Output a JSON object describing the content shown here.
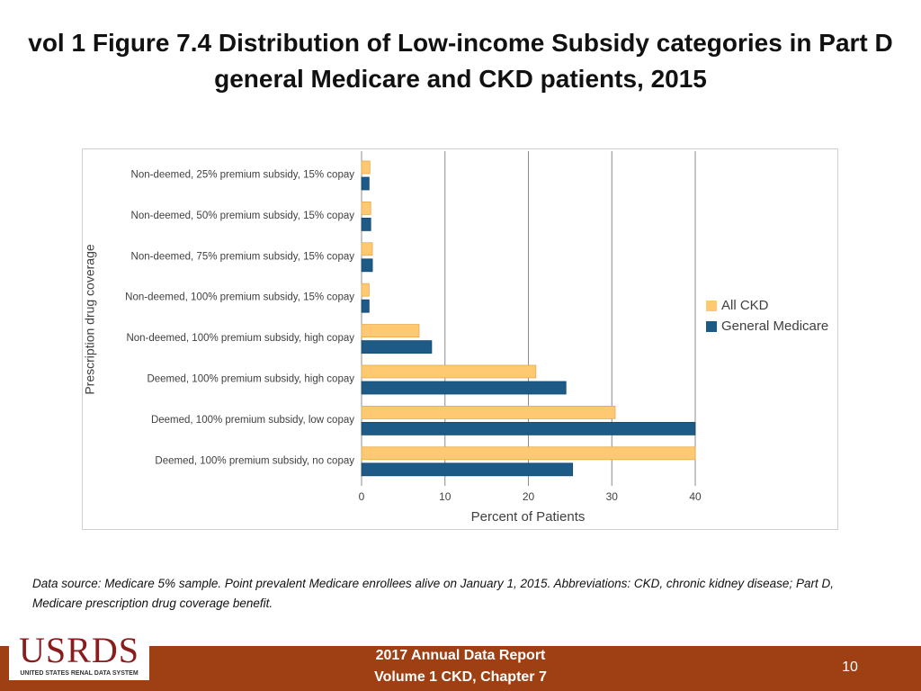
{
  "title": "vol 1 Figure 7.4 Distribution of Low-income Subsidy categories in Part D general Medicare and CKD patients, 2015",
  "chart_data": {
    "type": "barh",
    "categories": [
      "Non-deemed, 25% premium subsidy, 15% copay",
      "Non-deemed, 50% premium subsidy, 15% copay",
      "Non-deemed, 75% premium subsidy, 15% copay",
      "Non-deemed, 100% premium subsidy, 15% copay",
      "Non-deemed, 100% premium subsidy, high copay",
      "Deemed, 100% premium subsidy, high copay",
      "Deemed, 100% premium subsidy, low copay",
      "Deemed, 100% premium subsidy, no copay"
    ],
    "series": [
      {
        "name": "All CKD",
        "color": "#ffc972",
        "values": [
          1.0,
          1.1,
          1.3,
          0.9,
          6.9,
          20.9,
          30.4,
          40
        ]
      },
      {
        "name": "General Medicare",
        "color": "#1d5a85",
        "values": [
          0.9,
          1.1,
          1.3,
          0.9,
          8.4,
          24.5,
          40,
          25.3
        ]
      }
    ],
    "xlabel": "Percent of Patients",
    "ylabel": "Prescription drug coverage",
    "xlim": [
      0,
      40
    ],
    "xticks": [
      0,
      10,
      20,
      30,
      40
    ],
    "grid": true,
    "legend": "right"
  },
  "note": "Data source: Medicare 5% sample. Point prevalent Medicare enrollees alive on January 1, 2015. Abbreviations: CKD, chronic kidney disease; Part D, Medicare prescription drug coverage benefit.",
  "footer": {
    "logo": "USRDS",
    "logo_subtitle": "UNITED STATES RENAL DATA SYSTEM",
    "report_lines": [
      "2017 Annual Data Report",
      "Volume 1 CKD, Chapter 7"
    ],
    "page_number": "10"
  }
}
